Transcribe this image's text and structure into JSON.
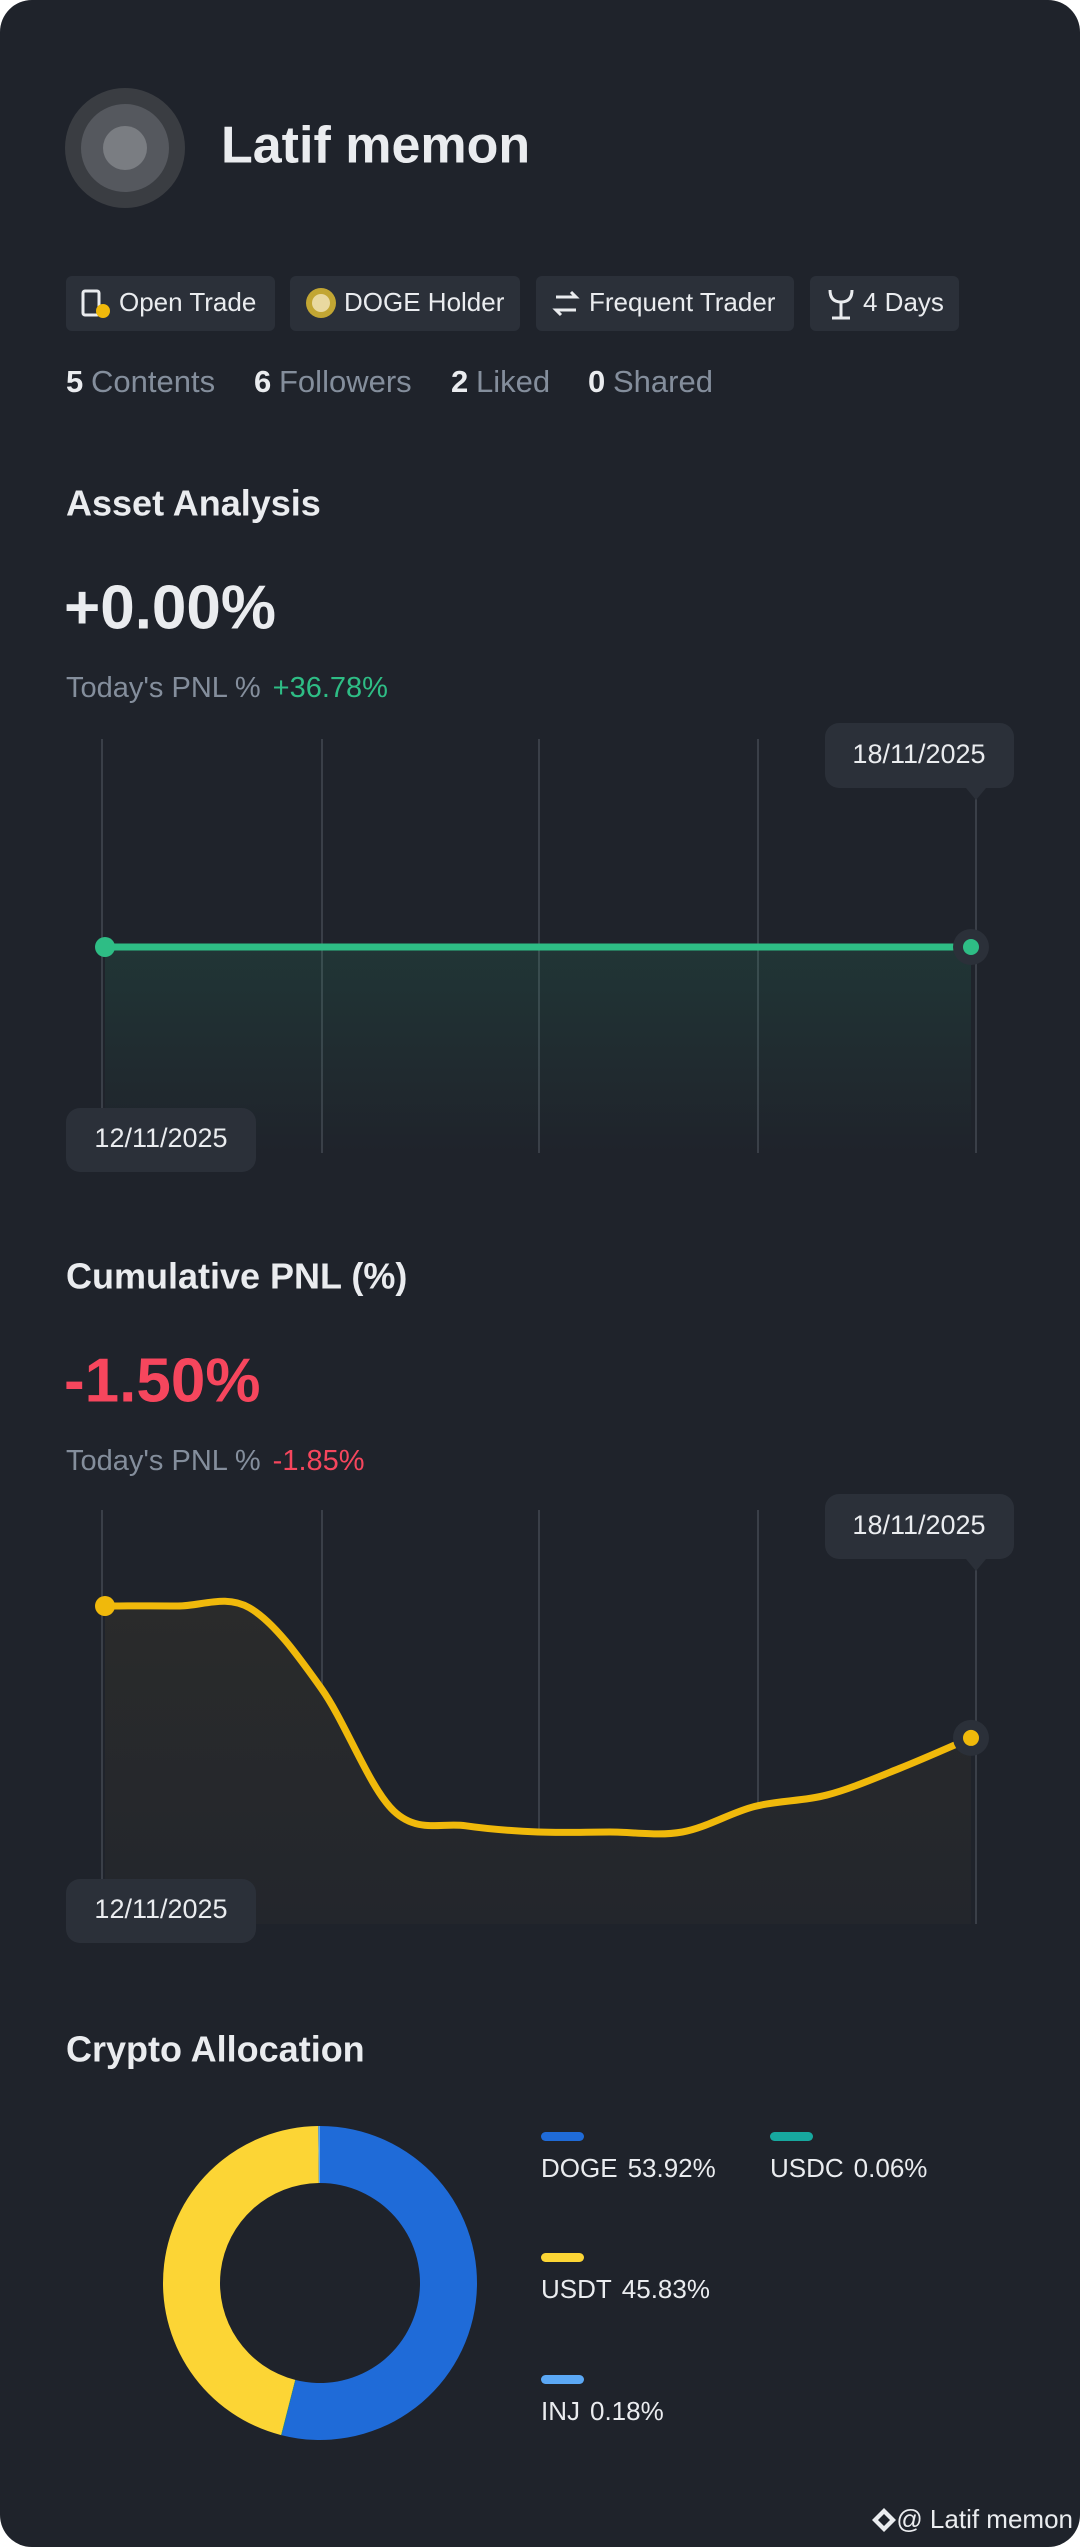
{
  "profile": {
    "name": "Latif memon"
  },
  "badges": [
    "Open Trade",
    "DOGE Holder",
    "Frequent Trader",
    "4 Days"
  ],
  "stats": [
    {
      "value": "5",
      "label": "Contents"
    },
    {
      "value": "6",
      "label": "Followers"
    },
    {
      "value": "2",
      "label": "Liked"
    },
    {
      "value": "0",
      "label": "Shared"
    }
  ],
  "asset_analysis": {
    "title": "Asset Analysis",
    "headline": "+0.00%",
    "today_label": "Today's PNL %",
    "today_value": "+36.78%",
    "chart": {
      "type": "line",
      "start_label": "12/11/2025",
      "end_label": "18/11/2025",
      "color": "#2ebd85",
      "values": [
        0,
        0,
        0,
        0,
        0,
        0,
        0,
        0,
        0,
        0,
        0,
        0,
        0
      ]
    }
  },
  "cumulative_pnl": {
    "title": "Cumulative PNL (%)",
    "headline": "-1.50%",
    "today_label": "Today's PNL %",
    "today_value": "-1.85%",
    "chart": {
      "type": "line",
      "start_label": "12/11/2025",
      "end_label": "18/11/2025",
      "color": "#f0b90b",
      "values": [
        0,
        0,
        -0.02,
        -0.94,
        -2.33,
        -2.5,
        -2.57,
        -2.57,
        -2.57,
        -2.28,
        -2.15,
        -1.85,
        -1.5
      ]
    }
  },
  "crypto_allocation": {
    "title": "Crypto Allocation",
    "chart": {
      "type": "donut",
      "categories": [
        "DOGE",
        "USDC",
        "USDT",
        "INJ"
      ],
      "values": [
        53.92,
        0.06,
        45.83,
        0.18
      ],
      "value_labels": [
        "53.92%",
        "0.06%",
        "45.83%",
        "0.18%"
      ],
      "colors": [
        "#1f6bd8",
        "#17a89f",
        "#fcd535",
        "#5ba8f5"
      ]
    }
  },
  "footer": {
    "watermark": "@ Latif memon"
  }
}
